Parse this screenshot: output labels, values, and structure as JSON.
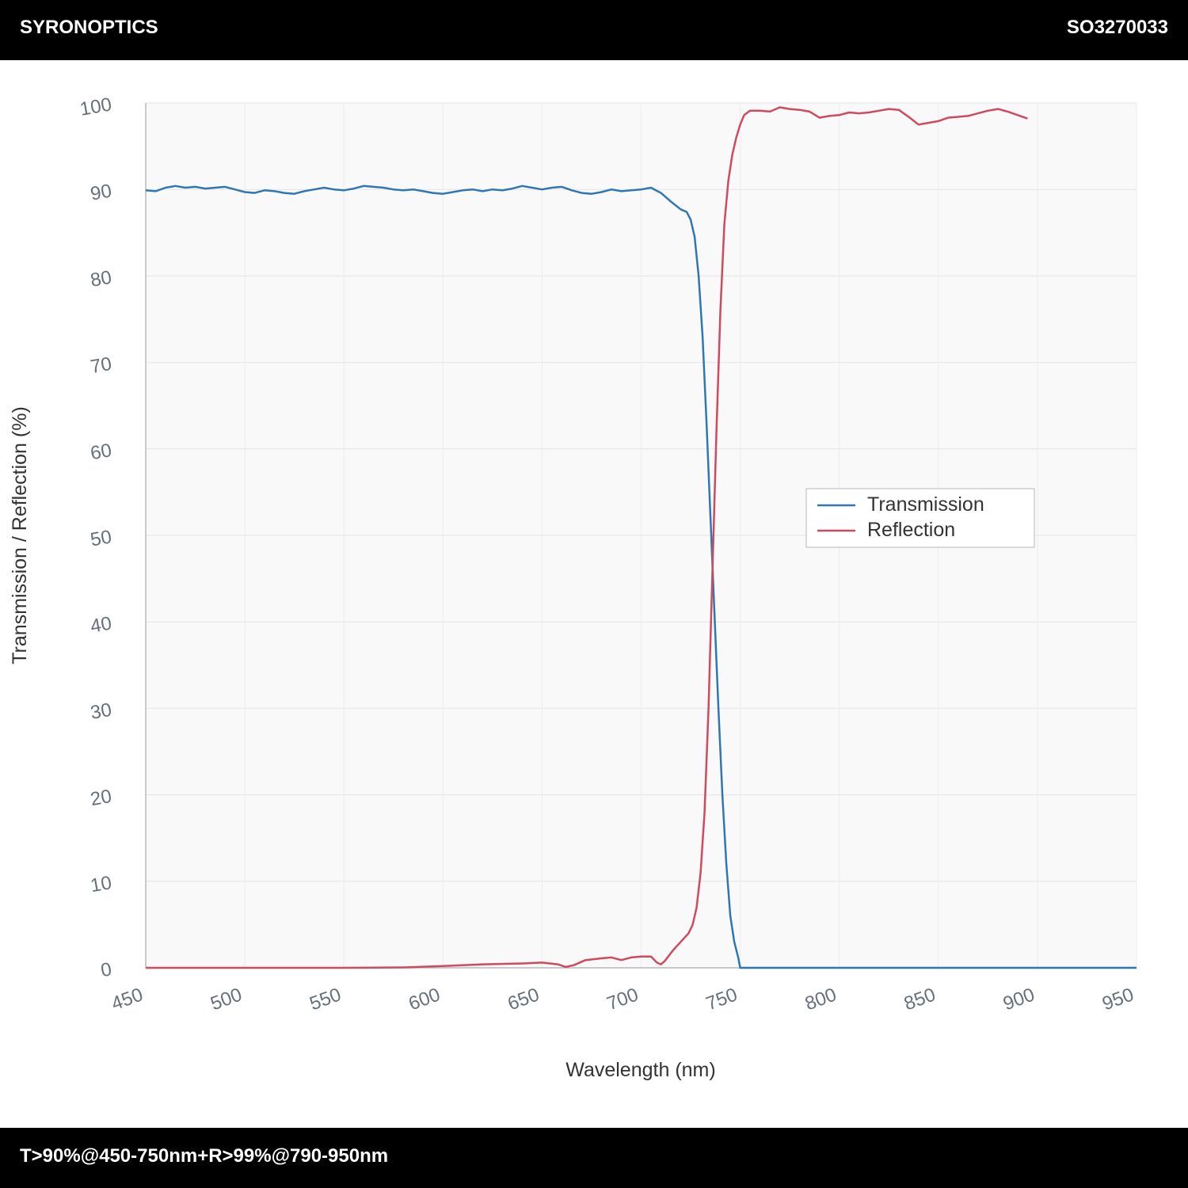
{
  "header": {
    "brand": "SYRONOPTICS",
    "code": "SO3270033"
  },
  "footer": {
    "spec": "T>90%@450-750nm+R>99%@790-950nm"
  },
  "chart_data": {
    "type": "line",
    "title": "",
    "xlabel": "Wavelength (nm)",
    "ylabel": "Transmission / Reflection (%)",
    "xlim": [
      450,
      950
    ],
    "ylim": [
      0,
      100
    ],
    "x_ticks": [
      450,
      500,
      550,
      600,
      650,
      700,
      750,
      800,
      850,
      900,
      950
    ],
    "y_ticks": [
      0,
      10,
      20,
      30,
      40,
      50,
      60,
      70,
      80,
      90,
      100
    ],
    "grid": true,
    "legend_position": "center-right",
    "series": [
      {
        "name": "Transmission",
        "color": "#2f77b4",
        "points": [
          [
            450,
            89.9
          ],
          [
            455,
            89.8
          ],
          [
            460,
            90.2
          ],
          [
            465,
            90.4
          ],
          [
            470,
            90.2
          ],
          [
            475,
            90.3
          ],
          [
            480,
            90.1
          ],
          [
            485,
            90.2
          ],
          [
            490,
            90.3
          ],
          [
            495,
            90.0
          ],
          [
            500,
            89.7
          ],
          [
            505,
            89.6
          ],
          [
            510,
            89.9
          ],
          [
            515,
            89.8
          ],
          [
            520,
            89.6
          ],
          [
            525,
            89.5
          ],
          [
            530,
            89.8
          ],
          [
            535,
            90.0
          ],
          [
            540,
            90.2
          ],
          [
            545,
            90.0
          ],
          [
            550,
            89.9
          ],
          [
            555,
            90.1
          ],
          [
            560,
            90.4
          ],
          [
            565,
            90.3
          ],
          [
            570,
            90.2
          ],
          [
            575,
            90.0
          ],
          [
            580,
            89.9
          ],
          [
            585,
            90.0
          ],
          [
            590,
            89.8
          ],
          [
            595,
            89.6
          ],
          [
            600,
            89.5
          ],
          [
            605,
            89.7
          ],
          [
            610,
            89.9
          ],
          [
            615,
            90.0
          ],
          [
            620,
            89.8
          ],
          [
            625,
            90.0
          ],
          [
            630,
            89.9
          ],
          [
            635,
            90.1
          ],
          [
            640,
            90.4
          ],
          [
            645,
            90.2
          ],
          [
            650,
            90.0
          ],
          [
            655,
            90.2
          ],
          [
            660,
            90.3
          ],
          [
            665,
            89.9
          ],
          [
            670,
            89.6
          ],
          [
            675,
            89.5
          ],
          [
            680,
            89.7
          ],
          [
            685,
            90.0
          ],
          [
            690,
            89.8
          ],
          [
            695,
            89.9
          ],
          [
            700,
            90.0
          ],
          [
            705,
            90.2
          ],
          [
            710,
            89.6
          ],
          [
            715,
            88.6
          ],
          [
            720,
            87.7
          ],
          [
            723,
            87.4
          ],
          [
            725,
            86.5
          ],
          [
            727,
            84.5
          ],
          [
            729,
            80.0
          ],
          [
            731,
            73.0
          ],
          [
            733,
            63.0
          ],
          [
            735,
            52.0
          ],
          [
            737,
            41.0
          ],
          [
            739,
            30.0
          ],
          [
            741,
            20.0
          ],
          [
            743,
            12.0
          ],
          [
            745,
            6.0
          ],
          [
            747,
            3.0
          ],
          [
            749,
            1.2
          ],
          [
            750,
            0.0
          ],
          [
            760,
            0.0
          ],
          [
            800,
            0.0
          ],
          [
            850,
            0.0
          ],
          [
            900,
            0.0
          ],
          [
            950,
            0.0
          ]
        ]
      },
      {
        "name": "Reflection",
        "color": "#d04a5e",
        "points": [
          [
            450,
            0.0
          ],
          [
            500,
            0.0
          ],
          [
            550,
            0.0
          ],
          [
            580,
            0.05
          ],
          [
            600,
            0.2
          ],
          [
            620,
            0.4
          ],
          [
            640,
            0.5
          ],
          [
            650,
            0.6
          ],
          [
            658,
            0.4
          ],
          [
            662,
            0.1
          ],
          [
            666,
            0.3
          ],
          [
            672,
            0.9
          ],
          [
            680,
            1.1
          ],
          [
            685,
            1.2
          ],
          [
            690,
            0.9
          ],
          [
            695,
            1.2
          ],
          [
            700,
            1.3
          ],
          [
            705,
            1.3
          ],
          [
            708,
            0.6
          ],
          [
            710,
            0.4
          ],
          [
            712,
            0.8
          ],
          [
            716,
            2.0
          ],
          [
            720,
            3.0
          ],
          [
            724,
            4.0
          ],
          [
            726,
            5.0
          ],
          [
            728,
            7.0
          ],
          [
            730,
            11.0
          ],
          [
            732,
            18.0
          ],
          [
            734,
            30.0
          ],
          [
            736,
            46.0
          ],
          [
            738,
            62.0
          ],
          [
            740,
            76.0
          ],
          [
            742,
            86.0
          ],
          [
            744,
            91.0
          ],
          [
            746,
            94.0
          ],
          [
            748,
            96.0
          ],
          [
            750,
            97.5
          ],
          [
            752,
            98.6
          ],
          [
            755,
            99.1
          ],
          [
            760,
            99.1
          ],
          [
            765,
            99.0
          ],
          [
            770,
            99.5
          ],
          [
            775,
            99.3
          ],
          [
            780,
            99.2
          ],
          [
            785,
            99.0
          ],
          [
            790,
            98.3
          ],
          [
            795,
            98.5
          ],
          [
            800,
            98.6
          ],
          [
            805,
            98.9
          ],
          [
            810,
            98.8
          ],
          [
            815,
            98.9
          ],
          [
            820,
            99.1
          ],
          [
            825,
            99.3
          ],
          [
            830,
            99.2
          ],
          [
            835,
            98.4
          ],
          [
            840,
            97.5
          ],
          [
            845,
            97.7
          ],
          [
            850,
            97.9
          ],
          [
            855,
            98.3
          ],
          [
            860,
            98.4
          ],
          [
            865,
            98.5
          ],
          [
            870,
            98.8
          ],
          [
            875,
            99.1
          ],
          [
            880,
            99.3
          ],
          [
            885,
            99.0
          ],
          [
            890,
            98.6
          ],
          [
            895,
            98.2
          ]
        ]
      }
    ]
  }
}
